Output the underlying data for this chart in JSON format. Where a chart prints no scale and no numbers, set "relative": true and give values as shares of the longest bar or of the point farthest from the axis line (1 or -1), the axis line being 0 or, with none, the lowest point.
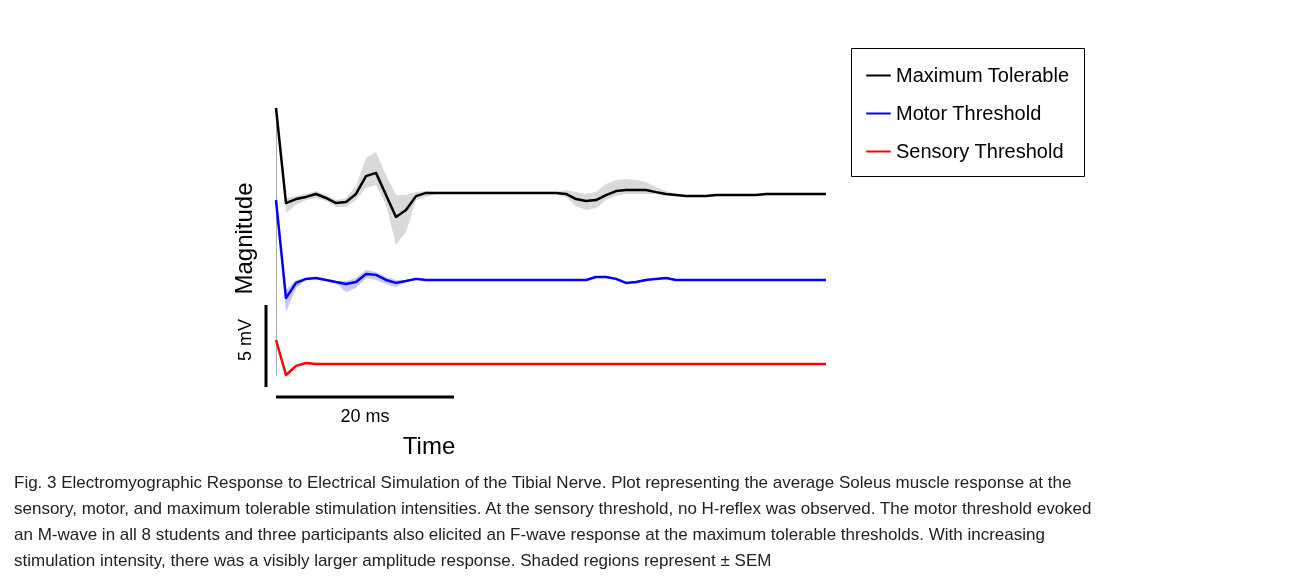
{
  "chart_data": {
    "type": "line",
    "relative": true,
    "xlabel": "Time",
    "ylabel": "Magnitude",
    "legend": "top right",
    "line_style": "solid",
    "annotations": [
      "5 mV",
      "20 ms",
      "Fig. 3 Electromyographic Response to Electrical Simulation of the Tibial Nerve. Plot representing the average Soleus muscle response at the sensory, motor, and maximum tolerable stimulation intensities. At the sensory threshold, no H-reflex was observed. The motor threshold evoked an M-wave in all 8 students and three participants also elicited an F-wave response at the maximum tolerable thresholds. With increasing stimulation intensity, there was a visibly larger amplitude response. Shaded regions represent ± SEM"
    ],
    "categories": [
      null,
      null,
      null,
      null,
      null,
      null,
      null,
      null,
      null,
      null,
      null,
      null,
      null,
      null,
      null,
      null,
      null,
      null,
      null,
      null,
      null,
      null,
      null,
      null,
      null,
      null,
      null,
      null,
      null,
      null,
      null,
      null,
      null,
      null,
      null,
      null,
      null,
      null,
      null,
      null,
      null,
      null,
      null,
      null,
      null,
      null,
      null,
      null,
      null,
      null,
      null,
      null,
      null,
      null,
      null,
      null
    ],
    "series": [
      {
        "name": "Maximum Tolerable",
        "color": "#000000",
        "values": [
          1.0,
          0.644,
          0.659,
          0.667,
          0.678,
          0.663,
          0.644,
          0.648,
          0.678,
          0.745,
          0.757,
          0.674,
          0.592,
          0.618,
          0.67,
          0.682,
          0.682,
          0.682,
          0.682,
          0.682,
          0.682,
          0.682,
          0.682,
          0.682,
          0.682,
          0.682,
          0.682,
          0.682,
          0.682,
          0.678,
          0.659,
          0.652,
          0.655,
          0.674,
          0.689,
          0.693,
          0.693,
          0.693,
          0.685,
          0.678,
          0.674,
          0.67,
          0.67,
          0.67,
          0.674,
          0.674,
          0.674,
          0.674,
          0.674,
          0.678,
          0.678,
          0.678,
          0.678,
          0.678,
          0.678,
          0.678
        ],
        "upper": [
          1.0,
          0.663,
          0.67,
          0.678,
          0.689,
          0.674,
          0.655,
          0.663,
          0.708,
          0.813,
          0.835,
          0.749,
          0.674,
          0.674,
          0.685,
          0.689,
          0.686,
          0.686,
          0.686,
          0.686,
          0.686,
          0.686,
          0.686,
          0.686,
          0.686,
          0.686,
          0.686,
          0.686,
          0.686,
          0.693,
          0.685,
          0.678,
          0.685,
          0.715,
          0.73,
          0.734,
          0.73,
          0.723,
          0.704,
          0.689,
          0.678,
          0.674,
          0.674,
          0.674,
          0.678,
          0.678,
          0.678,
          0.678,
          0.678,
          0.682,
          0.682,
          0.682,
          0.682,
          0.682,
          0.682,
          0.682
        ],
        "lower": [
          0.996,
          0.607,
          0.637,
          0.655,
          0.663,
          0.652,
          0.629,
          0.629,
          0.655,
          0.7,
          0.712,
          0.637,
          0.487,
          0.536,
          0.655,
          0.667,
          0.678,
          0.678,
          0.678,
          0.678,
          0.678,
          0.678,
          0.678,
          0.678,
          0.678,
          0.678,
          0.678,
          0.678,
          0.678,
          0.667,
          0.632,
          0.618,
          0.625,
          0.655,
          0.67,
          0.678,
          0.678,
          0.678,
          0.678,
          0.67,
          0.67,
          0.666,
          0.666,
          0.666,
          0.67,
          0.67,
          0.67,
          0.67,
          0.67,
          0.674,
          0.674,
          0.674,
          0.674,
          0.674,
          0.674,
          0.674
        ]
      },
      {
        "name": "Motor Threshold",
        "color": "#0000ff",
        "values": [
          0.655,
          0.288,
          0.345,
          0.36,
          0.363,
          0.356,
          0.348,
          0.341,
          0.348,
          0.378,
          0.375,
          0.356,
          0.345,
          0.352,
          0.36,
          0.356,
          0.356,
          0.356,
          0.356,
          0.356,
          0.356,
          0.356,
          0.356,
          0.356,
          0.356,
          0.356,
          0.356,
          0.356,
          0.356,
          0.356,
          0.356,
          0.356,
          0.367,
          0.367,
          0.36,
          0.345,
          0.348,
          0.356,
          0.36,
          0.363,
          0.356,
          0.356,
          0.356,
          0.356,
          0.356,
          0.356,
          0.356,
          0.356,
          0.356,
          0.356,
          0.356,
          0.356,
          0.356,
          0.356,
          0.356,
          0.356
        ],
        "upper": [
          0.659,
          0.318,
          0.356,
          0.364,
          0.367,
          0.36,
          0.352,
          0.352,
          0.363,
          0.393,
          0.386,
          0.367,
          0.356,
          0.356,
          0.364,
          0.36,
          0.36,
          0.36,
          0.36,
          0.36,
          0.36,
          0.36,
          0.36,
          0.36,
          0.36,
          0.36,
          0.36,
          0.36,
          0.36,
          0.36,
          0.36,
          0.36,
          0.371,
          0.371,
          0.364,
          0.349,
          0.352,
          0.36,
          0.364,
          0.367,
          0.36,
          0.36,
          0.36,
          0.36,
          0.36,
          0.36,
          0.36,
          0.36,
          0.36,
          0.36,
          0.36,
          0.36,
          0.36,
          0.36,
          0.36,
          0.36
        ],
        "lower": [
          0.651,
          0.236,
          0.326,
          0.356,
          0.359,
          0.352,
          0.344,
          0.311,
          0.326,
          0.363,
          0.356,
          0.341,
          0.33,
          0.348,
          0.356,
          0.352,
          0.352,
          0.352,
          0.352,
          0.352,
          0.352,
          0.352,
          0.352,
          0.352,
          0.352,
          0.352,
          0.352,
          0.352,
          0.352,
          0.352,
          0.352,
          0.352,
          0.363,
          0.363,
          0.356,
          0.341,
          0.344,
          0.352,
          0.356,
          0.359,
          0.352,
          0.352,
          0.352,
          0.352,
          0.352,
          0.352,
          0.352,
          0.352,
          0.352,
          0.352,
          0.352,
          0.352,
          0.352,
          0.352,
          0.352,
          0.352
        ]
      },
      {
        "name": "Sensory Threshold",
        "color": "#ff0000",
        "values": [
          0.131,
          0.0,
          0.034,
          0.045,
          0.041,
          0.041,
          0.041,
          0.041,
          0.041,
          0.041,
          0.041,
          0.041,
          0.041,
          0.041,
          0.041,
          0.041,
          0.041,
          0.041,
          0.041,
          0.041,
          0.041,
          0.041,
          0.041,
          0.041,
          0.041,
          0.041,
          0.041,
          0.041,
          0.041,
          0.041,
          0.041,
          0.041,
          0.041,
          0.041,
          0.041,
          0.041,
          0.041,
          0.041,
          0.041,
          0.041,
          0.041,
          0.041,
          0.041,
          0.041,
          0.041,
          0.041,
          0.041,
          0.041,
          0.041,
          0.041,
          0.041,
          0.041,
          0.041,
          0.041,
          0.041,
          0.041
        ]
      }
    ]
  }
}
